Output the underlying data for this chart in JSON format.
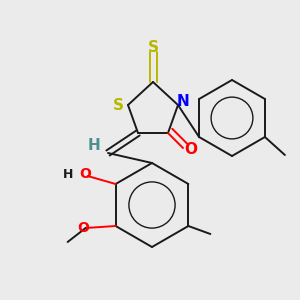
{
  "background_color": "#ebebeb",
  "bond_color": "#1a1a1a",
  "fig_size": [
    3.0,
    3.0
  ],
  "dpi": 100,
  "lw": 1.4,
  "colors": {
    "S": "#b8b800",
    "N": "#0000ff",
    "O": "#ff0000",
    "Cl": "#00aa00",
    "Br": "#994400",
    "H_teal": "#4a9090",
    "H_dark": "#1a1a1a",
    "bond": "#1a1a1a"
  }
}
